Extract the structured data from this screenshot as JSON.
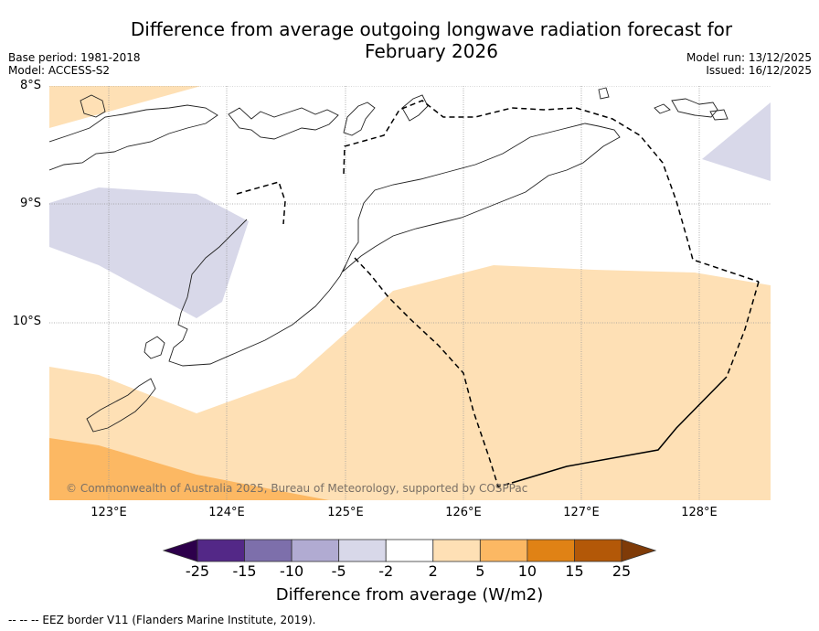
{
  "title": {
    "line1": "Difference from average outgoing longwave radiation forecast for",
    "line2": "February 2026"
  },
  "meta_left": {
    "base_period": "Base period: 1981-2018",
    "model": "Model: ACCESS-S2"
  },
  "meta_right": {
    "model_run": "Model run: 13/12/2025",
    "issued": "Issued: 16/12/2025"
  },
  "map": {
    "lat_labels": [
      "8°S",
      "9°S",
      "10°S"
    ],
    "lon_labels": [
      "123°E",
      "124°E",
      "125°E",
      "126°E",
      "127°E",
      "128°E"
    ],
    "lon_range": [
      122.5,
      128.6
    ],
    "lat_range": [
      -8.0,
      -11.5
    ],
    "copyright": "© Commonwealth of Australia 2025, Bureau of Meteorology, supported by COSPPac",
    "region_categories": [
      {
        "name": "light-orange-band-north-west",
        "category": "2 to 5"
      },
      {
        "name": "light-purple-west",
        "category": "-5 to -2"
      },
      {
        "name": "light-purple-east",
        "category": "-5 to -2"
      },
      {
        "name": "light-orange-south",
        "category": "2 to 5"
      },
      {
        "name": "orange-south-west",
        "category": "5 to 10"
      }
    ]
  },
  "colorbar": {
    "ticks": [
      "-25",
      "-15",
      "-10",
      "-5",
      "-2",
      "2",
      "5",
      "10",
      "15",
      "25"
    ],
    "colors": [
      "#532887",
      "#7d6fab",
      "#b1abd2",
      "#d8d8e9",
      "#ffffff",
      "#fee0b5",
      "#fcb863",
      "#e08215",
      "#b35808"
    ],
    "under_color": "#2d004b",
    "over_color": "#7f3b08",
    "label": "Difference from average (W/m2)"
  },
  "footer": "--  --  -- EEZ border V11 (Flanders Marine Institute, 2019)."
}
